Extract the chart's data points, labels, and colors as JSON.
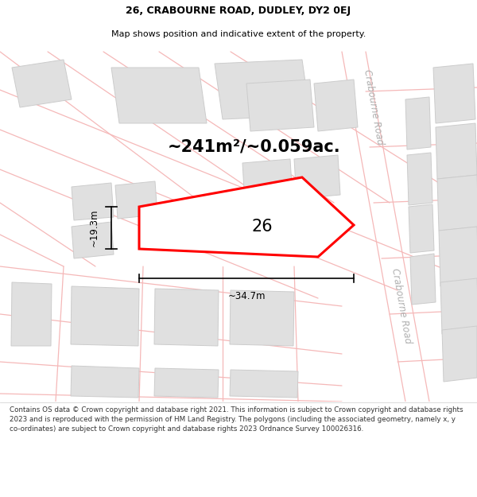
{
  "title_line1": "26, CRABOURNE ROAD, DUDLEY, DY2 0EJ",
  "title_line2": "Map shows position and indicative extent of the property.",
  "area_text": "~241m²/~0.059ac.",
  "label_26": "26",
  "dim_width": "~34.7m",
  "dim_height": "~19.3m",
  "road_label_top": "Crabourne Road",
  "road_label_bottom": "Crabourne Road",
  "footer_text": "Contains OS data © Crown copyright and database right 2021. This information is subject to Crown copyright and database rights 2023 and is reproduced with the permission of HM Land Registry. The polygons (including the associated geometry, namely x, y co-ordinates) are subject to Crown copyright and database rights 2023 Ordnance Survey 100026316.",
  "bg_color": "#ffffff",
  "map_bg_color": "#f7f7f7",
  "building_color": "#e0e0e0",
  "building_edge_color": "#cccccc",
  "highlight_color": "#ff0000",
  "road_line_color": "#f5b8b8",
  "dim_color": "#000000",
  "text_color": "#000000",
  "road_text_color": "#b0b0b0",
  "footer_color": "#333333",
  "title_fontsize": 9.0,
  "subtitle_fontsize": 8.0,
  "area_fontsize": 15,
  "label_fontsize": 15,
  "dim_fontsize": 8.5,
  "road_fontsize": 8.5,
  "footer_fontsize": 6.3
}
